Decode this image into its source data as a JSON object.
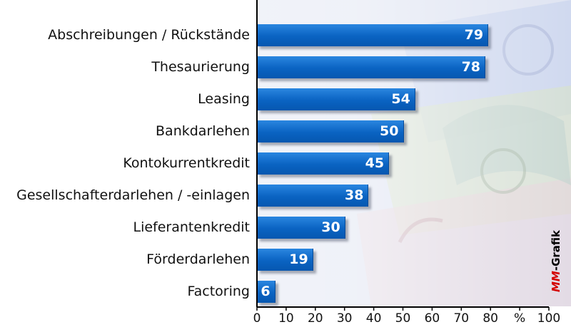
{
  "chart_data": {
    "type": "bar",
    "orientation": "horizontal",
    "categories": [
      "Abschreibungen / Rückstände",
      "Thesaurierung",
      "Leasing",
      "Bankdarlehen",
      "Kontokurrentkredit",
      "Gesellschafterdarlehen / -einlagen",
      "Lieferantenkredit",
      "Förderdarlehen",
      "Factoring"
    ],
    "values": [
      79,
      78,
      54,
      50,
      45,
      38,
      30,
      19,
      6
    ],
    "value_labels": [
      "79",
      "78",
      "54",
      "50",
      "45",
      "38",
      "30",
      "19",
      "6"
    ],
    "xlim": [
      0,
      100
    ],
    "x_ticks": [
      "0",
      "10",
      "20",
      "30",
      "40",
      "50",
      "60",
      "70",
      "80",
      "%",
      "100"
    ],
    "grid": false,
    "bar_color": "#0a63c2"
  },
  "watermark": {
    "mm": "MM",
    "rest": "-Grafik"
  }
}
